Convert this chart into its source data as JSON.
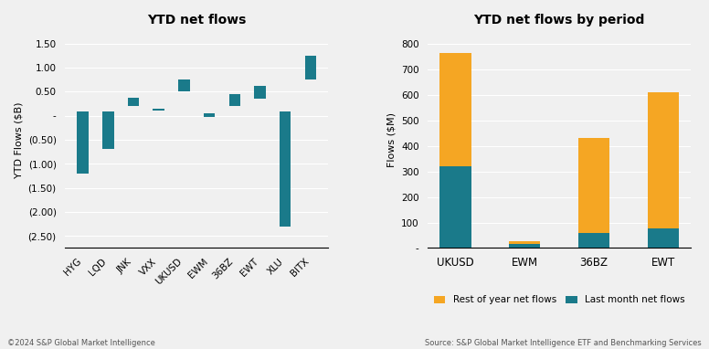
{
  "left_title": "YTD net flows",
  "right_title": "YTD net flows by period",
  "left_ylabel": "YTD Flows ($B)",
  "right_ylabel": "Flows ($M)",
  "left_categories": [
    "HYG",
    "LQD",
    "JNK",
    "VXX",
    "UKUSD",
    "EWM",
    "36BZ",
    "EWT",
    "XLU",
    "BITX"
  ],
  "bar_bottoms": [
    -1.2,
    -0.7,
    0.2,
    0.1,
    0.5,
    -0.02,
    0.2,
    0.35,
    -2.3,
    0.75
  ],
  "bar_tops": [
    0.08,
    0.08,
    0.37,
    0.15,
    0.75,
    0.05,
    0.45,
    0.62,
    0.08,
    1.25
  ],
  "left_ylim": [
    -2.75,
    1.75
  ],
  "left_yticks": [
    1.5,
    1.0,
    0.5,
    0.0,
    -0.5,
    -1.0,
    -1.5,
    -2.0,
    -2.5
  ],
  "bar_color": "#1a7a8a",
  "bg_color": "#f0f0f0",
  "right_categories": [
    "UKUSD",
    "EWM",
    "36BZ",
    "EWT"
  ],
  "last_month_values": [
    320,
    15,
    60,
    75
  ],
  "rest_of_year_values": [
    445,
    10,
    370,
    535
  ],
  "right_ylim": [
    0,
    850
  ],
  "right_yticks": [
    0,
    100,
    200,
    300,
    400,
    500,
    600,
    700,
    800
  ],
  "color_last_month": "#1a7a8a",
  "color_rest_of_year": "#f5a623",
  "legend_labels": [
    "Rest of year net flows",
    "Last month net flows"
  ],
  "footer_left": "©2024 S&P Global Market Intelligence",
  "footer_right": "Source: S&P Global Market Intelligence ETF and Benchmarking Services"
}
